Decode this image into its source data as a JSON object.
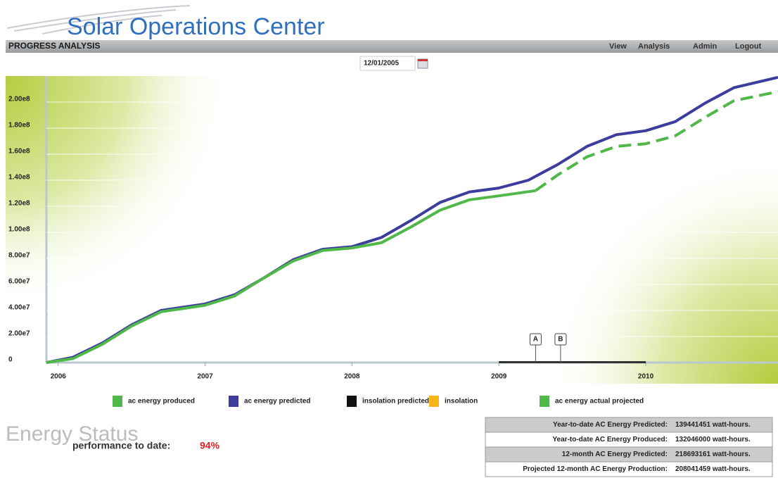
{
  "header": {
    "title": "Solar Operations Center",
    "section": "PROGRESS ANALYSIS",
    "nav": [
      "View",
      "Analysis",
      "Admin",
      "Logout"
    ]
  },
  "date_picker": {
    "value": "12/01/2005"
  },
  "chart_data": {
    "type": "line",
    "xlim": [
      2005.92,
      2010.9
    ],
    "ylim": [
      0,
      220000000
    ],
    "xticks": [
      2006,
      2007,
      2008,
      2009,
      2010
    ],
    "yticks": [
      0,
      {
        "value": 20000000,
        "label": "2.00e7"
      },
      {
        "value": 40000000,
        "label": "4.00e7"
      },
      {
        "value": 60000000,
        "label": "6.00e7"
      },
      {
        "value": 80000000,
        "label": "8.00e7"
      },
      {
        "value": 100000000,
        "label": "1.00e8"
      },
      {
        "value": 120000000,
        "label": "1.20e8"
      },
      {
        "value": 140000000,
        "label": "1.40e8"
      },
      {
        "value": 160000000,
        "label": "1.60e8"
      },
      {
        "value": 180000000,
        "label": "1.80e8"
      },
      {
        "value": 200000000,
        "label": "2.00e8"
      }
    ],
    "grid": true,
    "series": [
      {
        "name": "ac energy produced",
        "color": "#4fb848",
        "dash": false,
        "x": [
          2005.92,
          2006.1,
          2006.3,
          2006.5,
          2006.7,
          2007.0,
          2007.2,
          2007.4,
          2007.6,
          2007.8,
          2008.0,
          2008.2,
          2008.4,
          2008.6,
          2008.8,
          2009.0,
          2009.25
        ],
        "values": [
          0,
          3000000,
          14000000,
          28000000,
          39000000,
          44000000,
          51000000,
          65000000,
          78000000,
          86000000,
          88000000,
          92000000,
          104000000,
          117000000,
          125000000,
          128000000,
          132000000
        ]
      },
      {
        "name": "ac energy predicted",
        "color": "#3d3d9e",
        "dash": false,
        "x": [
          2005.92,
          2006.1,
          2006.3,
          2006.5,
          2006.7,
          2007.0,
          2007.2,
          2007.4,
          2007.6,
          2007.8,
          2008.0,
          2008.2,
          2008.4,
          2008.6,
          2008.8,
          2009.0,
          2009.2,
          2009.4,
          2009.6,
          2009.8,
          2010.0,
          2010.2,
          2010.4,
          2010.6,
          2010.9
        ],
        "values": [
          0,
          4000000,
          15000000,
          29000000,
          40000000,
          45000000,
          52000000,
          65000000,
          79000000,
          87000000,
          89000000,
          96000000,
          109000000,
          123000000,
          131000000,
          134000000,
          140000000,
          152000000,
          166000000,
          175000000,
          178000000,
          185000000,
          199000000,
          211000000,
          219000000
        ]
      },
      {
        "name": "insolation predicted",
        "color": "#111111",
        "dash": false,
        "x": [],
        "values": []
      },
      {
        "name": "insolation",
        "color": "#f5b417",
        "dash": false,
        "x": [],
        "values": []
      },
      {
        "name": "ac energy actual projected",
        "color": "#4fb848",
        "dash": true,
        "x": [
          2009.25,
          2009.4,
          2009.6,
          2009.8,
          2010.0,
          2010.2,
          2010.4,
          2010.6,
          2010.9
        ],
        "values": [
          132000000,
          144000000,
          158000000,
          166000000,
          168000000,
          174000000,
          188000000,
          201000000,
          208000000
        ]
      }
    ],
    "annotations": [
      {
        "label": "A",
        "x": 2009.25
      },
      {
        "label": "B",
        "x": 2009.42
      }
    ],
    "highlight_range": [
      2009,
      2010
    ]
  },
  "energy_status": {
    "title": "Energy Status",
    "performance_label": "performance to date:",
    "performance_value": "94%"
  },
  "summary_table": {
    "rows": [
      [
        "Year-to-date AC Energy Predicted:",
        "139441451 watt-hours."
      ],
      [
        "Year-to-date AC Energy Produced:",
        "132046000 watt-hours."
      ],
      [
        "12-month AC Energy Predicted:",
        "218693161 watt-hours."
      ],
      [
        "Projected 12-month AC Energy Production:",
        "208041459 watt-hours."
      ]
    ]
  }
}
